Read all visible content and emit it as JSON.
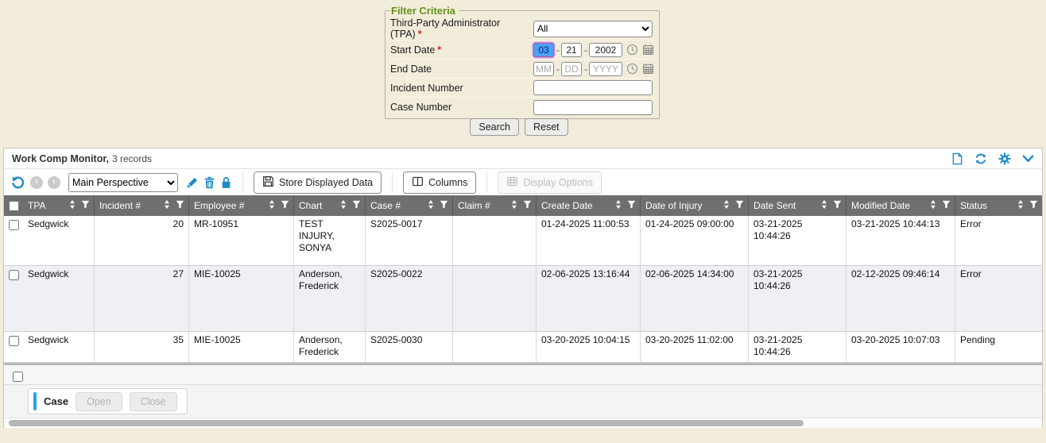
{
  "filter": {
    "legend": "Filter Criteria",
    "required_marker": "*",
    "date_separator": "-",
    "tpa": {
      "label": "Third-Party Administrator (TPA)",
      "value": "All"
    },
    "start_date": {
      "label": "Start Date",
      "mm": "03",
      "dd": "21",
      "yyyy": "2002"
    },
    "end_date": {
      "label": "End Date",
      "mm_placeholder": "MM",
      "dd_placeholder": "DD",
      "yyyy_placeholder": "YYYY"
    },
    "incident_number": {
      "label": "Incident Number",
      "value": ""
    },
    "case_number": {
      "label": "Case Number",
      "value": ""
    },
    "buttons": {
      "search": "Search",
      "reset": "Reset"
    }
  },
  "panel": {
    "title": "Work Comp Monitor,",
    "record_count": "3 records",
    "toolbar": {
      "perspective": "Main Perspective",
      "store_displayed_data": "Store Displayed Data",
      "columns": "Columns",
      "display_options": "Display Options"
    },
    "table": {
      "columns": [
        "TPA",
        "Incident #",
        "Employee #",
        "Chart",
        "Case #",
        "Claim #",
        "Create Date",
        "Date of Injury",
        "Date Sent",
        "Modified Date",
        "Status"
      ],
      "rows": [
        {
          "tpa": "Sedgwick",
          "incident": "20",
          "employee": "MR-10951",
          "chart": "TEST INJURY, SONYA",
          "case": "S2025-0017",
          "claim": "",
          "create_date": "01-24-2025 11:00:53",
          "date_of_injury": "01-24-2025 09:00:00",
          "date_sent": "03-21-2025 10:44:26",
          "modified_date": "03-21-2025 10:44:13",
          "status": "Error"
        },
        {
          "tpa": "Sedgwick",
          "incident": "27",
          "employee": "MIE-10025",
          "chart": "Anderson, Frederick",
          "case": "S2025-0022",
          "claim": "",
          "create_date": "02-06-2025 13:16:44",
          "date_of_injury": "02-06-2025 14:34:00",
          "date_sent": "03-21-2025 10:44:26",
          "modified_date": "02-12-2025 09:46:14",
          "status": "Error"
        },
        {
          "tpa": "Sedgwick",
          "incident": "35",
          "employee": "MIE-10025",
          "chart": "Anderson, Frederick",
          "case": "S2025-0030",
          "claim": "",
          "create_date": "03-20-2025 10:04:15",
          "date_of_injury": "03-20-2025 11:02:00",
          "date_sent": "03-21-2025 10:44:26",
          "modified_date": "03-20-2025 10:07:03",
          "status": "Pending"
        }
      ]
    },
    "footer": {
      "case_label": "Case",
      "open": "Open",
      "close": "Close"
    }
  },
  "icons": {
    "filter_date": [
      "clock-icon",
      "calendar-icon"
    ],
    "panel_header": [
      "new-document-icon",
      "refresh-icon",
      "gear-icon",
      "chevron-down-icon"
    ],
    "toolbar": [
      "undo-icon",
      "prev-page-icon",
      "next-page-icon",
      "pencil-icon",
      "trash-icon",
      "lock-icon",
      "save-icon",
      "columns-icon",
      "grid-icon"
    ],
    "table_header": [
      "sort-icon",
      "filter-funnel-icon"
    ]
  },
  "colors": {
    "page_background": "#f2ecdb",
    "accent_blue": "#1f8ac9",
    "legend_green": "#649118",
    "table_header_gray": "#6f6f6f",
    "alt_row": "#efeff4",
    "required_red": "#e01f1f",
    "case_accent_blue": "#2aa0f4"
  }
}
